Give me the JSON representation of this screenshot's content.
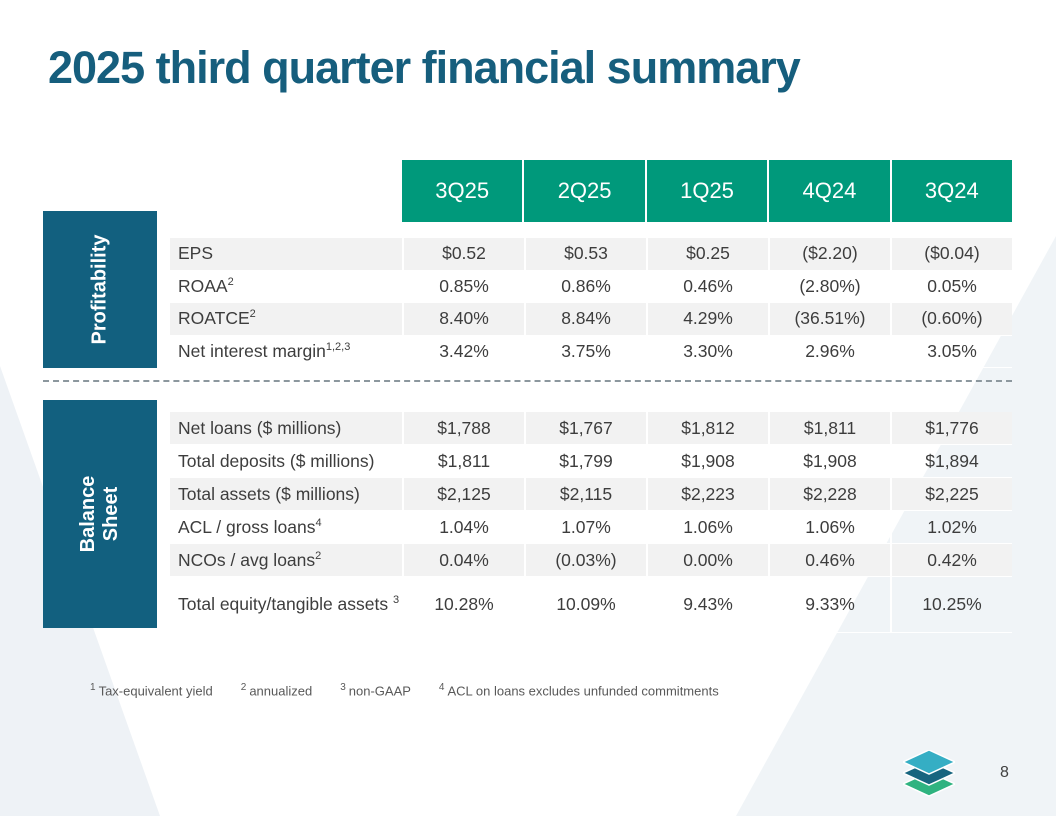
{
  "slide": {
    "title": "2025 third quarter financial summary",
    "page_number": "8"
  },
  "table": {
    "columns": [
      "3Q25",
      "2Q25",
      "1Q25",
      "4Q24",
      "3Q24"
    ],
    "sections": [
      {
        "label": "Profitability",
        "rows": [
          {
            "label": "EPS",
            "sup": "",
            "values": [
              "$0.52",
              "$0.53",
              "$0.25",
              "($2.20)",
              "($0.04)"
            ]
          },
          {
            "label": "ROAA",
            "sup": "2",
            "values": [
              "0.85%",
              "0.86%",
              "0.46%",
              "(2.80%)",
              "0.05%"
            ]
          },
          {
            "label": "ROATCE",
            "sup": "2",
            "values": [
              "8.40%",
              "8.84%",
              "4.29%",
              "(36.51%)",
              "(0.60%)"
            ]
          },
          {
            "label": "Net interest margin",
            "sup": "1,2,3",
            "values": [
              "3.42%",
              "3.75%",
              "3.30%",
              "2.96%",
              "3.05%"
            ]
          }
        ]
      },
      {
        "label": "Balance Sheet",
        "rows": [
          {
            "label": "Net loans ($ millions)",
            "sup": "",
            "values": [
              "$1,788",
              "$1,767",
              "$1,812",
              "$1,811",
              "$1,776"
            ]
          },
          {
            "label": "Total deposits ($ millions)",
            "sup": "",
            "values": [
              "$1,811",
              "$1,799",
              "$1,908",
              "$1,908",
              "$1,894"
            ]
          },
          {
            "label": "Total assets ($ millions)",
            "sup": "",
            "values": [
              "$2,125",
              "$2,115",
              "$2,223",
              "$2,228",
              "$2,225"
            ]
          },
          {
            "label": "ACL / gross loans",
            "sup": "4",
            "values": [
              "1.04%",
              "1.07%",
              "1.06%",
              "1.06%",
              "1.02%"
            ]
          },
          {
            "label": "NCOs / avg loans",
            "sup": "2",
            "values": [
              "0.04%",
              "(0.03%)",
              "0.00%",
              "0.46%",
              "0.42%"
            ]
          },
          {
            "label": "Total equity/tangible assets ",
            "sup": "3",
            "tall": true,
            "values": [
              "10.28%",
              "10.09%",
              "9.43%",
              "9.33%",
              "10.25%"
            ]
          }
        ]
      }
    ]
  },
  "footnotes": [
    {
      "sup": "1",
      "text": "Tax-equivalent yield"
    },
    {
      "sup": "2",
      "text": "annualized"
    },
    {
      "sup": "3",
      "text": "non-GAAP"
    },
    {
      "sup": "4",
      "text": "ACL on loans excludes unfunded commitments"
    }
  ],
  "colors": {
    "title": "#165E7D",
    "header_green": "#00997B",
    "sidebar_teal": "#12607F",
    "stripe_gray": "#F2F2F2"
  },
  "logo": {
    "name": "stacked-layers-logo"
  }
}
